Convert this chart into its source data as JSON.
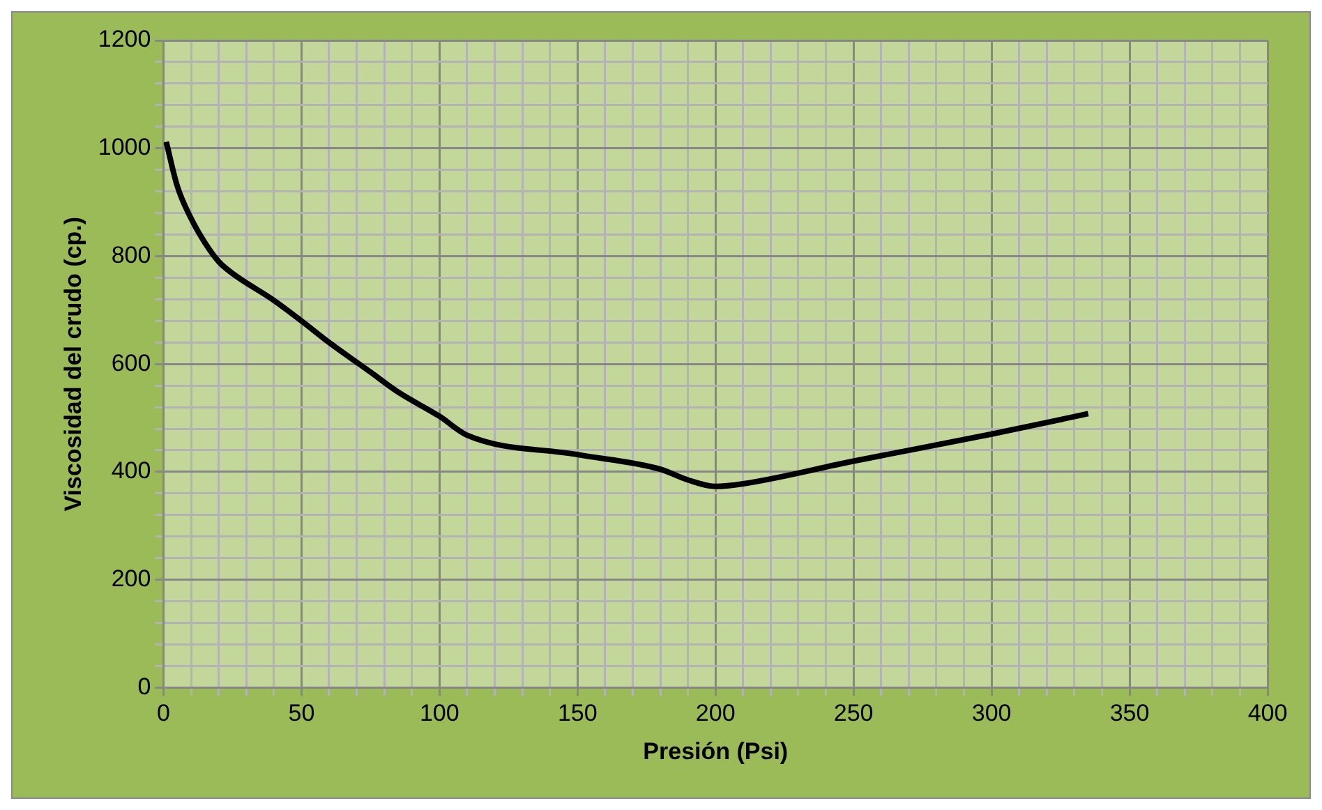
{
  "chart_data": {
    "type": "line",
    "xlabel": "Presión (Psi)",
    "ylabel": "Viscosidad del crudo (cp.)",
    "x": [
      1,
      5,
      10,
      15,
      20,
      25,
      40,
      50,
      60,
      75,
      85,
      100,
      110,
      150,
      180,
      190,
      200,
      210,
      250,
      300,
      335
    ],
    "series": [
      {
        "color": "#000000",
        "values": [
          1012,
          930,
          870,
          825,
          790,
          768,
          718,
          680,
          640,
          585,
          548,
          503,
          468,
          432,
          405,
          385,
          373,
          378,
          420,
          470,
          508
        ]
      }
    ],
    "xlim": [
      0,
      400
    ],
    "xticks": [
      0,
      {
        "value": 10,
        "label": null
      },
      {
        "value": 20,
        "label": null
      },
      {
        "value": 30,
        "label": null
      },
      {
        "value": 40,
        "label": null
      },
      50,
      {
        "value": 60,
        "label": null
      },
      {
        "value": 70,
        "label": null
      },
      {
        "value": 80,
        "label": null
      },
      {
        "value": 90,
        "label": null
      },
      100,
      {
        "value": 110,
        "label": null
      },
      {
        "value": 120,
        "label": null
      },
      {
        "value": 130,
        "label": null
      },
      {
        "value": 140,
        "label": null
      },
      150,
      {
        "value": 160,
        "label": null
      },
      {
        "value": 170,
        "label": null
      },
      {
        "value": 180,
        "label": null
      },
      {
        "value": 190,
        "label": null
      },
      200,
      {
        "value": 210,
        "label": null
      },
      {
        "value": 220,
        "label": null
      },
      {
        "value": 230,
        "label": null
      },
      {
        "value": 240,
        "label": null
      },
      250,
      {
        "value": 260,
        "label": null
      },
      {
        "value": 270,
        "label": null
      },
      {
        "value": 280,
        "label": null
      },
      {
        "value": 290,
        "label": null
      },
      300,
      {
        "value": 310,
        "label": null
      },
      {
        "value": 320,
        "label": null
      },
      {
        "value": 330,
        "label": null
      },
      {
        "value": 340,
        "label": null
      },
      350,
      {
        "value": 360,
        "label": null
      },
      {
        "value": 370,
        "label": null
      },
      {
        "value": 380,
        "label": null
      },
      {
        "value": 390,
        "label": null
      },
      400
    ],
    "ylim": [
      0,
      1200
    ],
    "yticks": [
      0,
      {
        "value": 40,
        "label": null
      },
      {
        "value": 80,
        "label": null
      },
      {
        "value": 120,
        "label": null
      },
      {
        "value": 160,
        "label": null
      },
      200,
      {
        "value": 240,
        "label": null
      },
      {
        "value": 280,
        "label": null
      },
      {
        "value": 320,
        "label": null
      },
      {
        "value": 360,
        "label": null
      },
      400,
      {
        "value": 440,
        "label": null
      },
      {
        "value": 480,
        "label": null
      },
      {
        "value": 520,
        "label": null
      },
      {
        "value": 560,
        "label": null
      },
      600,
      {
        "value": 640,
        "label": null
      },
      {
        "value": 680,
        "label": null
      },
      {
        "value": 720,
        "label": null
      },
      {
        "value": 760,
        "label": null
      },
      800,
      {
        "value": 840,
        "label": null
      },
      {
        "value": 880,
        "label": null
      },
      {
        "value": 920,
        "label": null
      },
      {
        "value": 960,
        "label": null
      },
      1000,
      {
        "value": 1040,
        "label": null
      },
      {
        "value": 1080,
        "label": null
      },
      {
        "value": 1120,
        "label": null
      },
      {
        "value": 1160,
        "label": null
      },
      1200
    ],
    "grid": true,
    "legend": false,
    "marker": "none",
    "line_style": "solid"
  }
}
